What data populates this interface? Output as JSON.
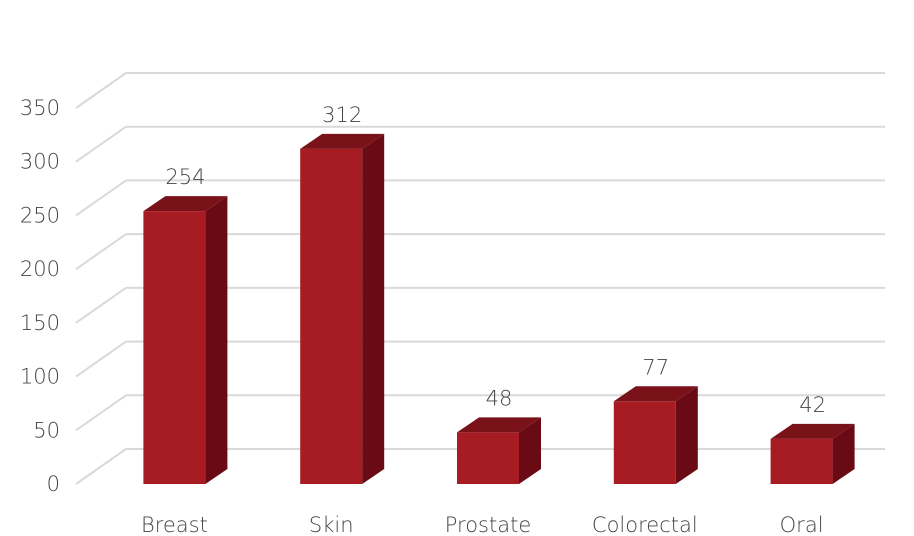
{
  "chart_data": {
    "type": "bar",
    "style": "3d-column",
    "title": "",
    "xlabel": "",
    "ylabel": "",
    "categories": [
      "Breast",
      "Skin",
      "Prostate",
      "Colorectal",
      "Oral"
    ],
    "series": [
      {
        "values": [
          254,
          312,
          48,
          77,
          42
        ]
      }
    ],
    "ylim": [
      0,
      350
    ],
    "yticks": [
      "0",
      "50",
      "100",
      "150",
      "200",
      "250",
      "300",
      "350"
    ],
    "data_labels": [
      "254",
      "312",
      "48",
      "77",
      "42"
    ],
    "grid": true,
    "legend": "none",
    "colors": {
      "bar_front": "#A61C22",
      "bar_side": "#6A0A15",
      "bar_top": "#7A121A",
      "grid": "#D9D9D9",
      "text": "#444444"
    }
  }
}
